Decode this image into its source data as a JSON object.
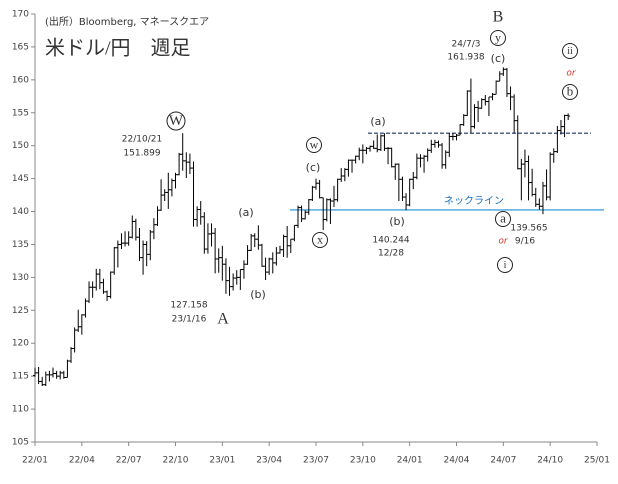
{
  "chart_data": {
    "type": "ohlc",
    "categories": [
      "22/01",
      null,
      null,
      null,
      null,
      null,
      null,
      null,
      null,
      null,
      null,
      null,
      null,
      "22/04",
      null,
      null,
      null,
      null,
      null,
      null,
      null,
      null,
      null,
      null,
      null,
      null,
      "22/07",
      null,
      null,
      null,
      null,
      null,
      null,
      null,
      null,
      null,
      null,
      null,
      null,
      "22/10",
      null,
      null,
      null,
      null,
      null,
      null,
      null,
      null,
      null,
      null,
      null,
      null,
      "23/01",
      null,
      null,
      null,
      null,
      null,
      null,
      null,
      null,
      null,
      null,
      null,
      null,
      "23/04",
      null,
      null,
      null,
      null,
      null,
      null,
      null,
      null,
      null,
      null,
      null,
      null,
      "23/07",
      null,
      null,
      null,
      null,
      null,
      null,
      null,
      null,
      null,
      null,
      null,
      null,
      "23/10",
      null,
      null,
      null,
      null,
      null,
      null,
      null,
      null,
      null,
      null,
      null,
      null,
      "24/01",
      null,
      null,
      null,
      null,
      null,
      null,
      null,
      null,
      null,
      null,
      null,
      null,
      "24/04",
      null,
      null,
      null,
      null,
      null,
      null,
      null,
      null,
      null,
      null,
      null,
      null,
      "24/07",
      null,
      null,
      null,
      null,
      null,
      null,
      null,
      null,
      null,
      null,
      null,
      null,
      "24/10",
      null,
      null,
      null,
      null,
      null,
      null,
      null,
      null,
      null,
      null,
      null,
      null,
      "25/01"
    ],
    "open": [
      115.1,
      115.5,
      114.2,
      113.7,
      115.2,
      115.2,
      115.4,
      115.0,
      115.5,
      114.8,
      117.3,
      119.2,
      122.0,
      122.5,
      124.3,
      126.4,
      128.5,
      128.5,
      130.5,
      129.2,
      127.8,
      127.1,
      130.8,
      134.5,
      135.0,
      135.2,
      135.2,
      136.1,
      138.5,
      136.1,
      133.0,
      135.0,
      133.5,
      136.9,
      138.0,
      140.2,
      142.5,
      142.9,
      143.3,
      144.7,
      145.6,
      148.7,
      147.7,
      147.5,
      146.6,
      138.8,
      140.3,
      139.2,
      134.3,
      136.6,
      136.7,
      132.8,
      133.0,
      132.0,
      129.5,
      128.6,
      129.9,
      130.0,
      131.2,
      132.0,
      134.1,
      136.3,
      135.8,
      134.9,
      131.7,
      130.8,
      132.8,
      132.2,
      133.7,
      134.2,
      136.2,
      134.8,
      135.8,
      137.9,
      140.6,
      138.9,
      139.9,
      141.8,
      143.7,
      144.3,
      142.1,
      138.8,
      141.8,
      141.6,
      141.8,
      144.9,
      145.4,
      146.4,
      147.8,
      147.8,
      148.4,
      149.3,
      149.3,
      149.6,
      149.9,
      149.6,
      149.4,
      151.5,
      149.6,
      149.6,
      146.8,
      147.2,
      144.9,
      142.2,
      141.0,
      144.9,
      145.2,
      148.1,
      148.1,
      148.4,
      149.3,
      150.2,
      150.5,
      150.1,
      147.1,
      149.0,
      151.4,
      151.4,
      151.6,
      153.2,
      154.6,
      158.3,
      152.9,
      155.8,
      155.7,
      157.0,
      156.7,
      157.4,
      157.8,
      159.8,
      160.9,
      161.6,
      157.9,
      157.4,
      153.8,
      146.5,
      147.2,
      147.6,
      144.4,
      142.6,
      141.1,
      140.8,
      143.9,
      142.2,
      148.7,
      149.1,
      152.3,
      152.9,
      154.6,
      null,
      null,
      null,
      null,
      null,
      null,
      null,
      null
    ],
    "high": [
      116.3,
      116.4,
      114.9,
      115.7,
      115.8,
      116.3,
      115.8,
      115.8,
      115.8,
      117.5,
      119.4,
      122.4,
      125.1,
      124.4,
      126.8,
      129.4,
      129.4,
      131.3,
      131.3,
      129.8,
      128.0,
      130.9,
      134.6,
      135.6,
      136.7,
      137.0,
      137.0,
      139.4,
      138.9,
      137.5,
      135.6,
      135.5,
      137.2,
      139.0,
      140.8,
      144.9,
      143.4,
      145.9,
      145.0,
      145.9,
      148.9,
      151.9,
      149.0,
      148.8,
      147.6,
      140.8,
      141.6,
      139.9,
      138.2,
      138.2,
      137.5,
      134.4,
      134.8,
      132.9,
      131.6,
      130.6,
      131.1,
      131.2,
      132.6,
      134.9,
      136.6,
      136.7,
      137.9,
      135.1,
      133.0,
      133.0,
      133.8,
      134.6,
      134.8,
      136.5,
      137.8,
      135.8,
      137.9,
      140.9,
      140.9,
      140.2,
      141.9,
      143.9,
      145.0,
      144.8,
      142.1,
      142.0,
      142.0,
      143.9,
      145.0,
      146.6,
      146.6,
      147.9,
      147.9,
      148.5,
      149.7,
      150.2,
      149.8,
      150.0,
      150.8,
      151.7,
      151.7,
      151.9,
      149.8,
      149.7,
      147.3,
      147.3,
      145.3,
      142.8,
      145.0,
      146.0,
      148.8,
      148.7,
      148.6,
      149.6,
      150.9,
      150.9,
      150.8,
      150.4,
      149.3,
      151.9,
      151.9,
      151.8,
      153.3,
      154.8,
      158.4,
      160.2,
      156.3,
      156.8,
      157.2,
      157.7,
      157.4,
      158.0,
      159.9,
      161.3,
      161.9,
      161.8,
      159.0,
      157.8,
      154.6,
      148.0,
      149.4,
      148.5,
      146.5,
      143.6,
      142.0,
      144.5,
      146.4,
      149.0,
      149.6,
      153.0,
      153.9,
      154.7,
      154.9,
      null,
      null,
      null,
      null,
      null,
      null,
      null,
      null
    ],
    "low": [
      114.9,
      113.8,
      113.5,
      113.5,
      114.2,
      114.8,
      114.6,
      114.5,
      114.6,
      114.8,
      117.0,
      118.6,
      121.7,
      121.3,
      123.9,
      126.1,
      126.9,
      128.0,
      128.2,
      127.5,
      126.4,
      126.8,
      130.4,
      131.5,
      134.3,
      134.7,
      134.8,
      135.9,
      135.6,
      132.5,
      130.4,
      131.7,
      132.6,
      135.8,
      137.8,
      140.1,
      141.6,
      140.4,
      142.3,
      143.5,
      145.5,
      146.2,
      145.1,
      145.7,
      137.7,
      137.7,
      138.0,
      133.6,
      133.6,
      134.7,
      130.6,
      130.7,
      129.5,
      127.5,
      127.2,
      128.0,
      128.9,
      128.1,
      129.8,
      131.9,
      134.0,
      134.6,
      134.2,
      131.6,
      129.6,
      130.4,
      130.6,
      131.8,
      133.6,
      133.1,
      133.0,
      133.7,
      135.5,
      137.5,
      138.4,
      138.8,
      139.5,
      141.6,
      143.3,
      142.0,
      137.2,
      138.5,
      138.1,
      140.7,
      141.5,
      144.5,
      144.6,
      145.3,
      145.9,
      147.3,
      147.8,
      147.3,
      148.7,
      149.1,
      149.5,
      149.0,
      149.2,
      149.2,
      147.2,
      146.7,
      144.8,
      141.6,
      141.6,
      140.2,
      140.8,
      143.4,
      144.9,
      146.7,
      145.9,
      147.6,
      148.9,
      149.7,
      149.7,
      146.5,
      146.5,
      148.3,
      150.8,
      150.8,
      151.6,
      153.0,
      154.5,
      151.9,
      152.6,
      153.6,
      155.6,
      156.1,
      154.5,
      156.9,
      157.8,
      159.8,
      160.6,
      157.4,
      155.4,
      151.9,
      146.4,
      141.7,
      145.2,
      141.7,
      142.3,
      140.7,
      140.3,
      139.6,
      141.7,
      141.7,
      147.4,
      148.9,
      151.7,
      151.3,
      153.9,
      null,
      null,
      null,
      null,
      null,
      null,
      null,
      null
    ],
    "close": [
      115.5,
      114.2,
      113.7,
      115.2,
      115.2,
      115.4,
      115.0,
      115.5,
      114.8,
      117.3,
      119.2,
      122.0,
      122.5,
      124.3,
      126.4,
      128.5,
      128.5,
      130.5,
      129.2,
      127.8,
      127.1,
      130.8,
      134.5,
      135.0,
      135.2,
      135.2,
      136.1,
      138.5,
      136.1,
      133.0,
      135.0,
      133.5,
      136.9,
      138.0,
      140.2,
      142.5,
      142.9,
      143.3,
      144.7,
      145.6,
      148.7,
      147.7,
      147.5,
      146.6,
      138.8,
      140.3,
      139.2,
      134.3,
      136.6,
      136.7,
      132.8,
      133.0,
      132.0,
      129.5,
      128.6,
      129.9,
      130.0,
      131.2,
      132.0,
      134.1,
      136.3,
      135.8,
      134.9,
      131.7,
      130.8,
      132.8,
      132.2,
      133.7,
      134.2,
      136.2,
      134.8,
      135.8,
      137.9,
      140.6,
      138.9,
      139.9,
      141.8,
      143.7,
      144.3,
      142.1,
      138.8,
      141.8,
      141.6,
      141.8,
      144.9,
      145.4,
      146.4,
      147.8,
      147.8,
      148.4,
      149.3,
      149.3,
      149.6,
      149.9,
      149.6,
      149.4,
      151.5,
      149.6,
      149.6,
      146.8,
      147.2,
      144.9,
      142.2,
      141.0,
      144.9,
      145.2,
      148.1,
      148.1,
      148.4,
      149.3,
      150.2,
      150.5,
      150.1,
      147.1,
      149.0,
      151.4,
      151.4,
      151.6,
      153.2,
      154.6,
      158.3,
      152.9,
      155.8,
      155.7,
      157.0,
      156.7,
      157.4,
      157.8,
      159.8,
      160.9,
      161.6,
      157.9,
      157.4,
      153.8,
      146.5,
      147.2,
      147.6,
      144.4,
      142.6,
      141.1,
      140.8,
      143.9,
      142.2,
      148.7,
      149.1,
      152.3,
      152.9,
      154.6,
      154.5,
      null,
      null,
      null,
      null,
      null,
      null,
      null,
      null
    ],
    "color": "#000000",
    "ylim": [
      105,
      170
    ],
    "yticks": [
      105,
      110,
      115,
      120,
      125,
      130,
      135,
      140,
      145,
      150,
      155,
      160,
      165,
      170
    ],
    "reference_lines": [
      {
        "value": 151.899,
        "dashed": true,
        "color": "#1f2d6b"
      },
      {
        "value": 140.244,
        "dashed": false,
        "color": "#1a8fd6"
      }
    ],
    "annotations": [
      {
        "text": "(出所）Bloomberg, マネースクエア"
      },
      {
        "text": "米ドル/円　週足"
      },
      {
        "text": "W",
        "circled": true
      },
      {
        "text": "22/10/21"
      },
      {
        "text": "151.899"
      },
      {
        "text": "127.158"
      },
      {
        "text": "23/1/16"
      },
      {
        "text": "A"
      },
      {
        "text": "(a)"
      },
      {
        "text": "(b)"
      },
      {
        "text": "w",
        "circled": true
      },
      {
        "text": "(c)"
      },
      {
        "text": "x",
        "circled": true
      },
      {
        "text": "(a)"
      },
      {
        "text": "(b)"
      },
      {
        "text": "140.244"
      },
      {
        "text": "12/28"
      },
      {
        "text": "ネックライン",
        "color": "#1a6fc0"
      },
      {
        "text": "B"
      },
      {
        "text": "y",
        "circled": true
      },
      {
        "text": "(c)"
      },
      {
        "text": "24/7/3"
      },
      {
        "text": "161.938"
      },
      {
        "text": "ii",
        "circled": true
      },
      {
        "text": "or",
        "color": "#d9342b"
      },
      {
        "text": "b",
        "circled": true
      },
      {
        "text": "a",
        "circled": true
      },
      {
        "text": "139.565"
      },
      {
        "text": "9/16"
      },
      {
        "text": "or",
        "color": "#d9342b"
      },
      {
        "text": "i",
        "circled": true
      }
    ]
  }
}
